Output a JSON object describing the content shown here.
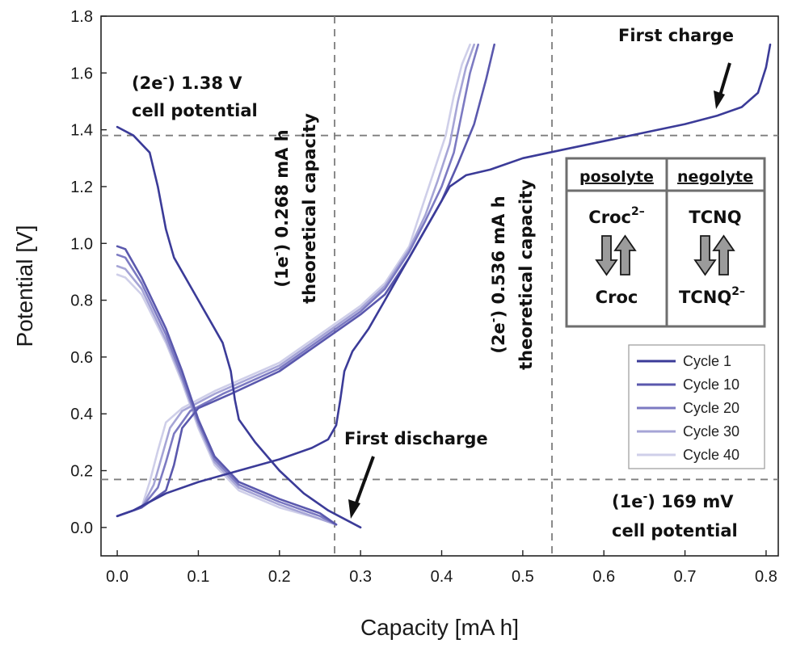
{
  "chart_data": {
    "type": "line",
    "xlabel": "Capacity [mA h]",
    "ylabel": "Potential [V]",
    "xlim": [
      -0.02,
      0.815
    ],
    "ylim": [
      -0.1,
      1.8
    ],
    "xticks": [
      0.0,
      0.1,
      0.2,
      0.3,
      0.4,
      0.5,
      0.6,
      0.7,
      0.8
    ],
    "yticks": [
      0.0,
      0.2,
      0.4,
      0.6,
      0.8,
      1.0,
      1.2,
      1.4,
      1.6,
      1.8
    ],
    "xtick_labels": [
      "0.0",
      "0.1",
      "0.2",
      "0.3",
      "0.4",
      "0.5",
      "0.6",
      "0.7",
      "0.8"
    ],
    "ytick_labels": [
      "0.0",
      "0.2",
      "0.4",
      "0.6",
      "0.8",
      "1.0",
      "1.2",
      "1.4",
      "1.6",
      "1.8"
    ],
    "grid": false,
    "legend_position": "bottom-right",
    "reference_lines": {
      "horizontal": [
        1.38,
        0.169
      ],
      "vertical": [
        0.268,
        0.536
      ]
    },
    "series": [
      {
        "name": "Cycle 1",
        "color": "#3b3b98",
        "charge": [
          [
            0.0,
            0.04
          ],
          [
            0.02,
            0.06
          ],
          [
            0.06,
            0.12
          ],
          [
            0.1,
            0.16
          ],
          [
            0.15,
            0.2
          ],
          [
            0.2,
            0.24
          ],
          [
            0.24,
            0.28
          ],
          [
            0.26,
            0.31
          ],
          [
            0.27,
            0.36
          ],
          [
            0.275,
            0.45
          ],
          [
            0.28,
            0.55
          ],
          [
            0.29,
            0.62
          ],
          [
            0.31,
            0.7
          ],
          [
            0.33,
            0.8
          ],
          [
            0.35,
            0.9
          ],
          [
            0.37,
            1.0
          ],
          [
            0.39,
            1.1
          ],
          [
            0.41,
            1.2
          ],
          [
            0.43,
            1.24
          ],
          [
            0.46,
            1.26
          ],
          [
            0.5,
            1.3
          ],
          [
            0.55,
            1.33
          ],
          [
            0.6,
            1.36
          ],
          [
            0.65,
            1.39
          ],
          [
            0.7,
            1.42
          ],
          [
            0.74,
            1.45
          ],
          [
            0.77,
            1.48
          ],
          [
            0.79,
            1.53
          ],
          [
            0.8,
            1.62
          ],
          [
            0.805,
            1.7
          ]
        ],
        "discharge": [
          [
            0.0,
            1.41
          ],
          [
            0.02,
            1.38
          ],
          [
            0.04,
            1.32
          ],
          [
            0.05,
            1.2
          ],
          [
            0.06,
            1.05
          ],
          [
            0.07,
            0.95
          ],
          [
            0.09,
            0.85
          ],
          [
            0.11,
            0.75
          ],
          [
            0.12,
            0.7
          ],
          [
            0.13,
            0.65
          ],
          [
            0.14,
            0.55
          ],
          [
            0.145,
            0.45
          ],
          [
            0.15,
            0.38
          ],
          [
            0.17,
            0.3
          ],
          [
            0.2,
            0.2
          ],
          [
            0.23,
            0.12
          ],
          [
            0.26,
            0.06
          ],
          [
            0.28,
            0.03
          ],
          [
            0.3,
            0.0
          ]
        ]
      },
      {
        "name": "Cycle 10",
        "color": "#5a58ad",
        "charge": [
          [
            0.0,
            0.04
          ],
          [
            0.03,
            0.07
          ],
          [
            0.06,
            0.13
          ],
          [
            0.07,
            0.22
          ],
          [
            0.08,
            0.35
          ],
          [
            0.1,
            0.42
          ],
          [
            0.14,
            0.47
          ],
          [
            0.2,
            0.55
          ],
          [
            0.25,
            0.65
          ],
          [
            0.3,
            0.75
          ],
          [
            0.33,
            0.82
          ],
          [
            0.36,
            0.95
          ],
          [
            0.38,
            1.05
          ],
          [
            0.4,
            1.15
          ],
          [
            0.42,
            1.28
          ],
          [
            0.44,
            1.42
          ],
          [
            0.455,
            1.58
          ],
          [
            0.465,
            1.7
          ]
        ],
        "discharge": [
          [
            0.0,
            0.99
          ],
          [
            0.01,
            0.98
          ],
          [
            0.03,
            0.88
          ],
          [
            0.06,
            0.7
          ],
          [
            0.08,
            0.55
          ],
          [
            0.1,
            0.38
          ],
          [
            0.12,
            0.25
          ],
          [
            0.15,
            0.16
          ],
          [
            0.2,
            0.1
          ],
          [
            0.25,
            0.05
          ],
          [
            0.27,
            0.01
          ]
        ]
      },
      {
        "name": "Cycle 20",
        "color": "#7c7ac2",
        "charge": [
          [
            0.0,
            0.04
          ],
          [
            0.03,
            0.07
          ],
          [
            0.05,
            0.14
          ],
          [
            0.06,
            0.23
          ],
          [
            0.07,
            0.33
          ],
          [
            0.09,
            0.41
          ],
          [
            0.13,
            0.47
          ],
          [
            0.2,
            0.56
          ],
          [
            0.25,
            0.66
          ],
          [
            0.3,
            0.76
          ],
          [
            0.33,
            0.84
          ],
          [
            0.36,
            0.97
          ],
          [
            0.38,
            1.08
          ],
          [
            0.4,
            1.2
          ],
          [
            0.415,
            1.32
          ],
          [
            0.425,
            1.46
          ],
          [
            0.435,
            1.6
          ],
          [
            0.445,
            1.7
          ]
        ],
        "discharge": [
          [
            0.0,
            0.96
          ],
          [
            0.01,
            0.95
          ],
          [
            0.03,
            0.86
          ],
          [
            0.06,
            0.68
          ],
          [
            0.08,
            0.53
          ],
          [
            0.1,
            0.37
          ],
          [
            0.12,
            0.24
          ],
          [
            0.15,
            0.15
          ],
          [
            0.2,
            0.09
          ],
          [
            0.25,
            0.04
          ],
          [
            0.27,
            0.01
          ]
        ]
      },
      {
        "name": "Cycle 30",
        "color": "#a6a5d6",
        "charge": [
          [
            0.0,
            0.04
          ],
          [
            0.03,
            0.07
          ],
          [
            0.045,
            0.15
          ],
          [
            0.055,
            0.25
          ],
          [
            0.065,
            0.35
          ],
          [
            0.08,
            0.41
          ],
          [
            0.12,
            0.47
          ],
          [
            0.2,
            0.57
          ],
          [
            0.25,
            0.67
          ],
          [
            0.3,
            0.77
          ],
          [
            0.33,
            0.85
          ],
          [
            0.36,
            0.98
          ],
          [
            0.38,
            1.1
          ],
          [
            0.395,
            1.22
          ],
          [
            0.41,
            1.35
          ],
          [
            0.42,
            1.5
          ],
          [
            0.43,
            1.62
          ],
          [
            0.44,
            1.7
          ]
        ],
        "discharge": [
          [
            0.0,
            0.92
          ],
          [
            0.01,
            0.91
          ],
          [
            0.03,
            0.84
          ],
          [
            0.06,
            0.66
          ],
          [
            0.08,
            0.52
          ],
          [
            0.1,
            0.36
          ],
          [
            0.12,
            0.23
          ],
          [
            0.15,
            0.14
          ],
          [
            0.2,
            0.08
          ],
          [
            0.25,
            0.03
          ],
          [
            0.27,
            0.01
          ]
        ]
      },
      {
        "name": "Cycle 40",
        "color": "#cfcfe9",
        "charge": [
          [
            0.0,
            0.04
          ],
          [
            0.03,
            0.07
          ],
          [
            0.04,
            0.16
          ],
          [
            0.05,
            0.27
          ],
          [
            0.06,
            0.37
          ],
          [
            0.08,
            0.42
          ],
          [
            0.12,
            0.48
          ],
          [
            0.2,
            0.58
          ],
          [
            0.25,
            0.68
          ],
          [
            0.3,
            0.78
          ],
          [
            0.33,
            0.86
          ],
          [
            0.36,
            0.99
          ],
          [
            0.375,
            1.12
          ],
          [
            0.39,
            1.25
          ],
          [
            0.405,
            1.38
          ],
          [
            0.415,
            1.52
          ],
          [
            0.425,
            1.63
          ],
          [
            0.435,
            1.7
          ]
        ],
        "discharge": [
          [
            0.0,
            0.89
          ],
          [
            0.01,
            0.88
          ],
          [
            0.03,
            0.82
          ],
          [
            0.06,
            0.65
          ],
          [
            0.08,
            0.51
          ],
          [
            0.1,
            0.35
          ],
          [
            0.12,
            0.22
          ],
          [
            0.15,
            0.13
          ],
          [
            0.2,
            0.07
          ],
          [
            0.25,
            0.03
          ],
          [
            0.27,
            0.01
          ]
        ]
      }
    ],
    "annotations": {
      "cell_potential_2e": {
        "line1_pre": "(2e",
        "line1_sup": "-",
        "line1_post": ") 1.38 V",
        "line2": "cell potential"
      },
      "theoretical_1e": {
        "line1_pre": "(1e",
        "line1_sup": "-",
        "line1_post": ") 0.268 mA h",
        "line2": "theoretical capacity"
      },
      "theoretical_2e": {
        "line1_pre": "(2e",
        "line1_sup": "-",
        "line1_post": ") 0.536 mA h",
        "line2": "theoretical capacity"
      },
      "first_charge": "First charge",
      "first_discharge": "First discharge",
      "cell_potential_1e": {
        "line1_pre": "(1e",
        "line1_sup": "-",
        "line1_post": ") 169 mV",
        "line2": "cell potential"
      }
    },
    "inset": {
      "posolyte_header": "posolyte",
      "negolyte_header": "negolyte",
      "posolyte_top": "Croc",
      "posolyte_top_sup": "2–",
      "posolyte_bottom": "Croc",
      "negolyte_top": "TCNQ",
      "negolyte_bottom": "TCNQ",
      "negolyte_bottom_sup": "2–"
    }
  }
}
